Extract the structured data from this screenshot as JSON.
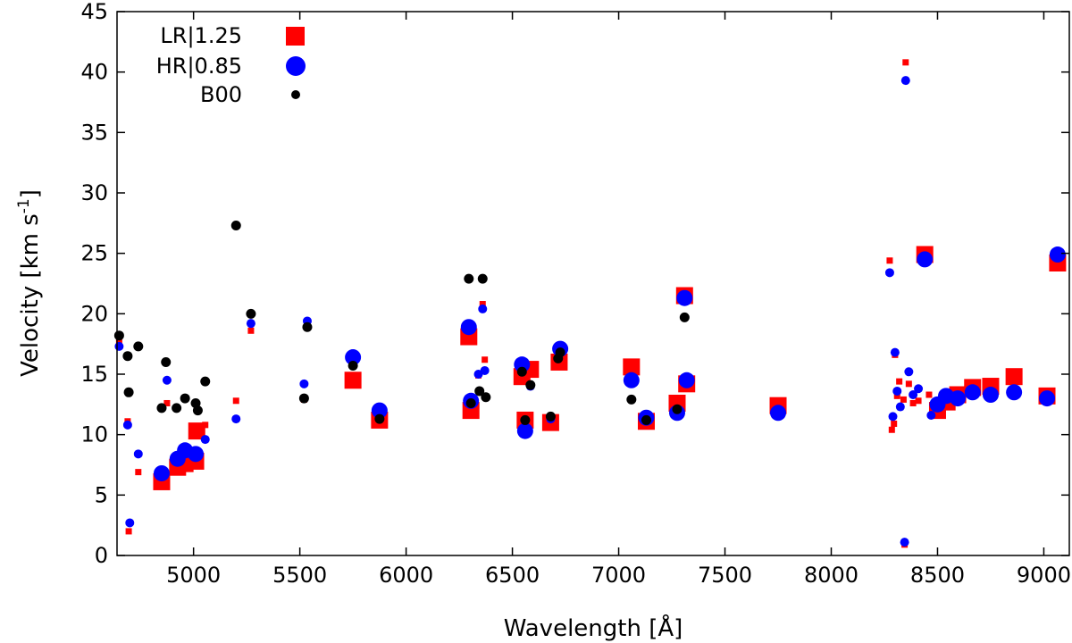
{
  "chart_data": {
    "type": "scatter",
    "xlabel": "Wavelength [Å]",
    "ylabel_main": "Velocity [km s",
    "ylabel_sup": "-1",
    "ylabel_close": "]",
    "xlim": [
      4640,
      9120
    ],
    "ylim": [
      0,
      45
    ],
    "xticks": [
      5000,
      5500,
      6000,
      6500,
      7000,
      7500,
      8000,
      8500,
      9000
    ],
    "yticks": [
      0,
      5,
      10,
      15,
      20,
      25,
      30,
      35,
      40,
      45
    ],
    "grid": false,
    "legend_position": "top-left",
    "series": [
      {
        "name": "LR|1.25",
        "marker": "square",
        "color": "#ff0000",
        "points": [
          [
            4650,
            17.7,
            "s"
          ],
          [
            4690,
            11.1,
            "s"
          ],
          [
            4695,
            2.0,
            "s"
          ],
          [
            4740,
            6.9,
            "s"
          ],
          [
            4850,
            6.1,
            "l"
          ],
          [
            4875,
            12.6,
            "s"
          ],
          [
            4925,
            7.3,
            "l"
          ],
          [
            4960,
            7.6,
            "l"
          ],
          [
            5010,
            7.8,
            "l"
          ],
          [
            5015,
            10.3,
            "l"
          ],
          [
            5055,
            10.8,
            "s"
          ],
          [
            5200,
            12.8,
            "s"
          ],
          [
            5270,
            18.6,
            "s"
          ],
          [
            5520,
            12.9,
            "s"
          ],
          [
            5535,
            19.0,
            "s"
          ],
          [
            5750,
            14.5,
            "l"
          ],
          [
            5875,
            11.2,
            "l"
          ],
          [
            6295,
            18.1,
            "l"
          ],
          [
            6305,
            12.0,
            "l"
          ],
          [
            6340,
            14.9,
            "s"
          ],
          [
            6360,
            20.8,
            "s"
          ],
          [
            6370,
            16.2,
            "s"
          ],
          [
            6545,
            14.8,
            "l"
          ],
          [
            6560,
            11.2,
            "l"
          ],
          [
            6585,
            15.4,
            "l"
          ],
          [
            6680,
            11.0,
            "l"
          ],
          [
            6720,
            16.0,
            "l"
          ],
          [
            7060,
            15.6,
            "l"
          ],
          [
            7130,
            11.1,
            "l"
          ],
          [
            7275,
            12.6,
            "l"
          ],
          [
            7310,
            21.5,
            "l"
          ],
          [
            7320,
            14.2,
            "l"
          ],
          [
            7750,
            12.4,
            "l"
          ],
          [
            8275,
            24.4,
            "s"
          ],
          [
            8285,
            10.4,
            "s"
          ],
          [
            8295,
            10.9,
            "s"
          ],
          [
            8300,
            16.6,
            "s"
          ],
          [
            8310,
            13.2,
            "s"
          ],
          [
            8320,
            14.4,
            "s"
          ],
          [
            8340,
            12.9,
            "s"
          ],
          [
            8345,
            0.9,
            "s"
          ],
          [
            8350,
            40.8,
            "s"
          ],
          [
            8365,
            14.2,
            "s"
          ],
          [
            8385,
            12.6,
            "s"
          ],
          [
            8410,
            12.8,
            "s"
          ],
          [
            8440,
            24.9,
            "l"
          ],
          [
            8460,
            13.3,
            "s"
          ],
          [
            8500,
            12.0,
            "l"
          ],
          [
            8545,
            12.7,
            "l"
          ],
          [
            8595,
            13.3,
            "l"
          ],
          [
            8665,
            13.9,
            "l"
          ],
          [
            8750,
            14.0,
            "l"
          ],
          [
            8860,
            14.8,
            "l"
          ],
          [
            9015,
            13.2,
            "l"
          ],
          [
            9065,
            24.2,
            "l"
          ]
        ]
      },
      {
        "name": "HR|0.85",
        "marker": "circle",
        "color": "#0000ff",
        "points": [
          [
            4650,
            17.3,
            "s"
          ],
          [
            4690,
            10.8,
            "s"
          ],
          [
            4700,
            2.7,
            "s"
          ],
          [
            4740,
            8.4,
            "s"
          ],
          [
            4850,
            6.8,
            "l"
          ],
          [
            4875,
            14.5,
            "s"
          ],
          [
            4925,
            8.0,
            "l"
          ],
          [
            4960,
            8.7,
            "l"
          ],
          [
            5010,
            8.4,
            "l"
          ],
          [
            5055,
            9.6,
            "s"
          ],
          [
            5200,
            11.3,
            "s"
          ],
          [
            5270,
            19.2,
            "s"
          ],
          [
            5520,
            14.2,
            "s"
          ],
          [
            5535,
            19.4,
            "s"
          ],
          [
            5750,
            16.4,
            "l"
          ],
          [
            5875,
            12.0,
            "l"
          ],
          [
            6295,
            18.9,
            "l"
          ],
          [
            6305,
            12.8,
            "l"
          ],
          [
            6340,
            15.0,
            "s"
          ],
          [
            6360,
            20.4,
            "s"
          ],
          [
            6370,
            15.3,
            "s"
          ],
          [
            6545,
            15.8,
            "l"
          ],
          [
            6560,
            10.3,
            "l"
          ],
          [
            6585,
            14.0,
            "s"
          ],
          [
            6680,
            11.3,
            "s"
          ],
          [
            6725,
            17.1,
            "l"
          ],
          [
            7060,
            14.5,
            "l"
          ],
          [
            7130,
            11.4,
            "l"
          ],
          [
            7275,
            11.8,
            "l"
          ],
          [
            7310,
            21.3,
            "l"
          ],
          [
            7320,
            14.5,
            "l"
          ],
          [
            7750,
            11.8,
            "l"
          ],
          [
            8275,
            23.4,
            "s"
          ],
          [
            8290,
            11.5,
            "s"
          ],
          [
            8300,
            16.8,
            "s"
          ],
          [
            8310,
            13.6,
            "s"
          ],
          [
            8325,
            12.3,
            "s"
          ],
          [
            8345,
            1.1,
            "s"
          ],
          [
            8350,
            39.3,
            "s"
          ],
          [
            8365,
            15.2,
            "s"
          ],
          [
            8385,
            13.3,
            "s"
          ],
          [
            8410,
            13.8,
            "s"
          ],
          [
            8440,
            24.5,
            "l"
          ],
          [
            8470,
            11.6,
            "s"
          ],
          [
            8500,
            12.5,
            "l"
          ],
          [
            8540,
            13.2,
            "l"
          ],
          [
            8595,
            13.0,
            "l"
          ],
          [
            8665,
            13.5,
            "l"
          ],
          [
            8750,
            13.3,
            "l"
          ],
          [
            8860,
            13.5,
            "l"
          ],
          [
            9015,
            13.0,
            "l"
          ],
          [
            9065,
            24.9,
            "l"
          ]
        ]
      },
      {
        "name": "B00",
        "marker": "circle",
        "color": "#000000",
        "points": [
          [
            4650,
            18.2,
            "m"
          ],
          [
            4690,
            16.5,
            "m"
          ],
          [
            4695,
            13.5,
            "m"
          ],
          [
            4740,
            17.3,
            "m"
          ],
          [
            4850,
            12.2,
            "m"
          ],
          [
            4870,
            16.0,
            "m"
          ],
          [
            4920,
            12.2,
            "m"
          ],
          [
            4960,
            13.0,
            "m"
          ],
          [
            5010,
            12.6,
            "m"
          ],
          [
            5020,
            12.0,
            "m"
          ],
          [
            5055,
            14.4,
            "m"
          ],
          [
            5200,
            27.3,
            "m"
          ],
          [
            5270,
            20.0,
            "m"
          ],
          [
            5520,
            13.0,
            "m"
          ],
          [
            5535,
            18.9,
            "m"
          ],
          [
            5750,
            15.7,
            "m"
          ],
          [
            5875,
            11.3,
            "m"
          ],
          [
            6295,
            22.9,
            "m"
          ],
          [
            6305,
            12.6,
            "m"
          ],
          [
            6345,
            13.6,
            "m"
          ],
          [
            6360,
            22.9,
            "m"
          ],
          [
            6375,
            13.1,
            "m"
          ],
          [
            6545,
            15.2,
            "m"
          ],
          [
            6560,
            11.2,
            "m"
          ],
          [
            6585,
            14.1,
            "m"
          ],
          [
            6680,
            11.5,
            "m"
          ],
          [
            6715,
            16.3,
            "m"
          ],
          [
            6725,
            16.8,
            "m"
          ],
          [
            7060,
            12.9,
            "m"
          ],
          [
            7130,
            11.2,
            "m"
          ],
          [
            7275,
            12.1,
            "m"
          ],
          [
            7310,
            19.7,
            "m"
          ]
        ]
      }
    ]
  }
}
